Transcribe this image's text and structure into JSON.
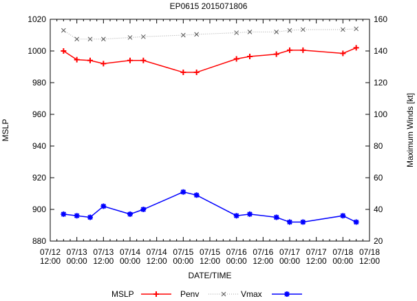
{
  "chart_data": {
    "type": "line",
    "title": "EP0615 2015071806",
    "xlabel": "DATE/TIME",
    "ylabel": "MSLP",
    "y2label": "Maximum Winds [kt]",
    "ylim": [
      880,
      1020
    ],
    "y2lim": [
      20,
      160
    ],
    "yticks": [
      "880",
      "900",
      "920",
      "940",
      "960",
      "980",
      "1000",
      "1020"
    ],
    "y2ticks": [
      "20",
      "40",
      "60",
      "80",
      "100",
      "120",
      "140",
      "160"
    ],
    "xticks": [
      [
        "07/12",
        "12:00"
      ],
      [
        "07/13",
        "00:00"
      ],
      [
        "07/13",
        "12:00"
      ],
      [
        "07/14",
        "00:00"
      ],
      [
        "07/14",
        "12:00"
      ],
      [
        "07/15",
        "00:00"
      ],
      [
        "07/15",
        "12:00"
      ],
      [
        "07/16",
        "00:00"
      ],
      [
        "07/16",
        "12:00"
      ],
      [
        "07/17",
        "00:00"
      ],
      [
        "07/17",
        "12:00"
      ],
      [
        "07/18",
        "00:00"
      ],
      [
        "07/18",
        "12:00"
      ]
    ],
    "x_hours_since_0712_12z": [
      6,
      12,
      18,
      24,
      36,
      42,
      60,
      66,
      84,
      90,
      102,
      108,
      114,
      132,
      138
    ],
    "series": [
      {
        "name": "MSLP",
        "axis": "left",
        "color": "#ff0000",
        "values": [
          1000,
          994.5,
          994,
          992,
          994,
          994,
          986.5,
          986.5,
          995,
          996.5,
          998,
          1000.5,
          1000.5,
          998.5,
          1002
        ]
      },
      {
        "name": "Penv",
        "axis": "left",
        "color": "#a0a0a0",
        "values": [
          1013,
          1007.5,
          1007.5,
          1007.5,
          1008.5,
          1009,
          1010,
          1010.5,
          1011.5,
          1012,
          1012,
          1013,
          1013.5,
          1013.5,
          1014
        ]
      },
      {
        "name": "Vmax",
        "axis": "right",
        "color": "#0000ff",
        "values": [
          37,
          36,
          35,
          42,
          37,
          40,
          51,
          49,
          36,
          37,
          35,
          32,
          32,
          36,
          32
        ]
      }
    ],
    "legend": "bottom"
  }
}
